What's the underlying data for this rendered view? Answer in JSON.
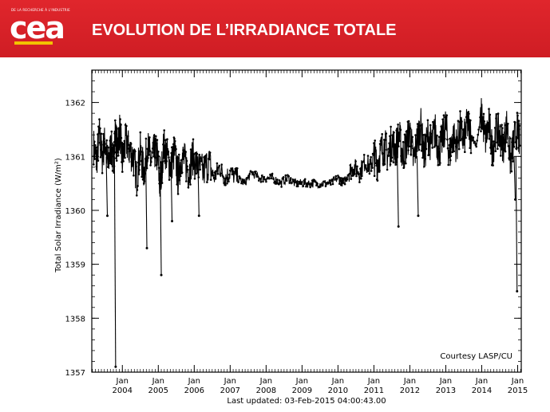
{
  "header": {
    "logo_caption": "DE LA RECHERCHE À L'INDUSTRIE",
    "logo_text": "cea",
    "title": "EVOLUTION DE L’IRRADIANCE TOTALE"
  },
  "colors": {
    "banner": "#d41f26",
    "logo_accent": "#f2c200",
    "series": "#000000"
  },
  "chart_data": {
    "type": "line",
    "title": "",
    "ylabel": "Total Solar Irradiance (W/m²)",
    "xlabel": "Last updated: 03-Feb-2015 04:00:43.00",
    "annotation": "Courtesy LASP/CU",
    "xlim": [
      2003.15,
      2015.1
    ],
    "ylim": [
      1357,
      1362.6
    ],
    "grid": false,
    "x_ticks": [
      {
        "value": 2004,
        "top": "Jan",
        "bottom": "2004"
      },
      {
        "value": 2005,
        "top": "Jan",
        "bottom": "2005"
      },
      {
        "value": 2006,
        "top": "Jan",
        "bottom": "2006"
      },
      {
        "value": 2007,
        "top": "Jan",
        "bottom": "2007"
      },
      {
        "value": 2008,
        "top": "Jan",
        "bottom": "2008"
      },
      {
        "value": 2009,
        "top": "Jan",
        "bottom": "2009"
      },
      {
        "value": 2010,
        "top": "Jan",
        "bottom": "2010"
      },
      {
        "value": 2011,
        "top": "Jan",
        "bottom": "2011"
      },
      {
        "value": 2012,
        "top": "Jan",
        "bottom": "2012"
      },
      {
        "value": 2013,
        "top": "Jan",
        "bottom": "2013"
      },
      {
        "value": 2014,
        "top": "Jan",
        "bottom": "2014"
      },
      {
        "value": 2015,
        "top": "Jan",
        "bottom": "2015"
      }
    ],
    "y_ticks": [
      {
        "value": 1357,
        "label": "1357"
      },
      {
        "value": 1358,
        "label": "1358"
      },
      {
        "value": 1359,
        "label": "1359"
      },
      {
        "value": 1360,
        "label": "1360"
      },
      {
        "value": 1361,
        "label": "1361"
      },
      {
        "value": 1362,
        "label": "1362"
      }
    ],
    "series": [
      {
        "x": [
          2003.2,
          2003.28,
          2003.36,
          2003.44,
          2003.52,
          2003.6,
          2003.68,
          2003.75,
          2003.8,
          2003.86,
          2003.93,
          2004.0,
          2004.1,
          2004.2,
          2004.3,
          2004.4,
          2004.5,
          2004.6,
          2004.7,
          2004.8,
          2004.9,
          2004.98,
          2005.05,
          2005.15,
          2005.25,
          2005.35,
          2005.45,
          2005.55,
          2005.65,
          2005.75,
          2005.85,
          2005.95,
          2006.1,
          2006.25,
          2006.4,
          2006.55,
          2006.7,
          2006.85,
          2007.0,
          2007.2,
          2007.4,
          2007.6,
          2007.8,
          2008.0,
          2008.2,
          2008.4,
          2008.6,
          2008.8,
          2009.0,
          2009.2,
          2009.4,
          2009.6,
          2009.8,
          2010.0,
          2010.15,
          2010.3,
          2010.45,
          2010.6,
          2010.75,
          2010.9,
          2011.0,
          2011.1,
          2011.2,
          2011.3,
          2011.4,
          2011.5,
          2011.6,
          2011.7,
          2011.8,
          2011.9,
          2012.0,
          2012.1,
          2012.2,
          2012.3,
          2012.4,
          2012.5,
          2012.6,
          2012.7,
          2012.8,
          2012.9,
          2013.0,
          2013.1,
          2013.2,
          2013.3,
          2013.4,
          2013.5,
          2013.6,
          2013.7,
          2013.85,
          2014.0,
          2014.1,
          2014.2,
          2014.3,
          2014.4,
          2014.5,
          2014.6,
          2014.7,
          2014.8,
          2014.9,
          2015.0,
          2015.06
        ],
        "y": [
          1361.2,
          1360.9,
          1361.4,
          1361.0,
          1361.3,
          1360.8,
          1361.2,
          1360.9,
          1361.4,
          1361.2,
          1361.5,
          1360.9,
          1361.3,
          1361.1,
          1361.0,
          1360.6,
          1361.1,
          1360.7,
          1361.2,
          1360.9,
          1361.1,
          1361.0,
          1360.4,
          1361.2,
          1361.0,
          1360.8,
          1361.1,
          1360.6,
          1361.0,
          1360.9,
          1360.7,
          1361.0,
          1360.8,
          1360.7,
          1360.9,
          1360.6,
          1360.8,
          1360.6,
          1360.7,
          1360.6,
          1360.5,
          1360.7,
          1360.6,
          1360.6,
          1360.6,
          1360.5,
          1360.6,
          1360.5,
          1360.5,
          1360.5,
          1360.5,
          1360.5,
          1360.5,
          1360.6,
          1360.5,
          1360.7,
          1360.8,
          1360.7,
          1360.9,
          1360.8,
          1361.0,
          1360.9,
          1361.1,
          1361.2,
          1361.0,
          1361.3,
          1361.1,
          1361.4,
          1361.0,
          1361.2,
          1361.5,
          1360.9,
          1361.3,
          1361.6,
          1361.0,
          1361.4,
          1361.2,
          1361.5,
          1361.1,
          1361.3,
          1361.6,
          1361.0,
          1361.4,
          1361.2,
          1361.5,
          1361.3,
          1361.6,
          1361.4,
          1361.2,
          1361.8,
          1361.3,
          1361.6,
          1361.1,
          1361.5,
          1361.4,
          1361.2,
          1361.6,
          1360.9,
          1361.3,
          1361.5,
          1361.2
        ]
      }
    ],
    "dips": [
      {
        "x": 2003.78,
        "y": 1357.1
      },
      {
        "x": 2003.55,
        "y": 1359.9
      },
      {
        "x": 2004.65,
        "y": 1359.3
      },
      {
        "x": 2005.05,
        "y": 1358.8
      },
      {
        "x": 2005.35,
        "y": 1359.8
      },
      {
        "x": 2006.1,
        "y": 1359.9
      },
      {
        "x": 2011.65,
        "y": 1359.7
      },
      {
        "x": 2012.2,
        "y": 1359.9
      },
      {
        "x": 2014.95,
        "y": 1358.5
      },
      {
        "x": 2014.9,
        "y": 1360.2
      }
    ]
  }
}
